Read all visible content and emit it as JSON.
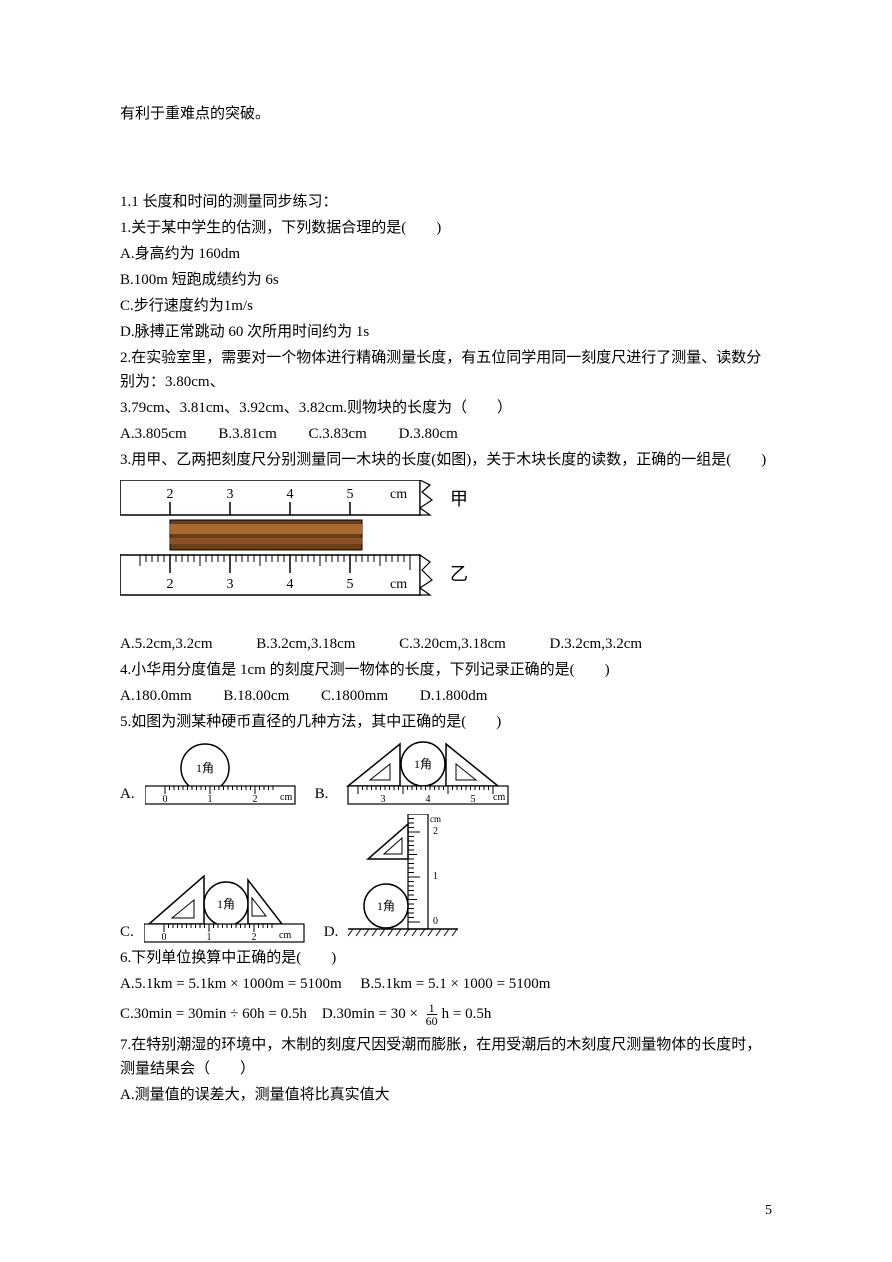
{
  "intro": "有利于重难点的突破。",
  "section": {
    "title": "1.1 长度和时间的测量同步练习：",
    "q1": {
      "stem": "1.关于某中学生的估测，下列数据合理的是(　　)",
      "A": "A.身高约为 160dm",
      "B": "B.100m 短跑成绩约为 6s",
      "C": "C.步行速度约为1m/s",
      "D": "D.脉搏正常跳动 60 次所用时间约为 1s"
    },
    "q2": {
      "stem1": "2.在实验室里，需要对一个物体进行精确测量长度，有五位同学用同一刻度尺进行了测量、读数分别为：3.80cm、",
      "stem2": "3.79cm、3.81cm、3.92cm、3.82cm.则物块的长度为（　　）",
      "A": "A.3.805cm",
      "B": "B.3.81cm",
      "C": "C.3.83cm",
      "D": "D.3.80cm"
    },
    "q3": {
      "stem": "3.用甲、乙两把刻度尺分别测量同一木块的长度(如图)，关于木块长度的读数，正确的一组是(　　)",
      "A": "A.5.2cm,3.2cm",
      "B": "B.3.2cm,3.18cm",
      "C": "C.3.20cm,3.18cm",
      "D": "D.3.2cm,3.2cm",
      "ruler1": {
        "ticks": [
          "2",
          "3",
          "4",
          "5"
        ],
        "unit": "cm",
        "label": "甲"
      },
      "ruler2": {
        "ticks": [
          "2",
          "3",
          "4",
          "5"
        ],
        "unit": "cm",
        "label": "乙"
      }
    },
    "q4": {
      "stem": "4.小华用分度值是 1cm 的刻度尺测一物体的长度，下列记录正确的是(　　)",
      "A": "A.180.0mm",
      "B": "B.18.00cm",
      "C": "C.1800mm",
      "D": "D.1.800dm"
    },
    "q5": {
      "stem": "5.如图为测某种硬币直径的几种方法，其中正确的是(　　)",
      "coin_label": "1角",
      "unit": "cm",
      "A_ticks": [
        "0",
        "1",
        "2"
      ],
      "B_ticks": [
        "3",
        "4",
        "5"
      ],
      "C_ticks": [
        "0",
        "1",
        "2"
      ],
      "D_ticks": [
        "0",
        "1",
        "2"
      ],
      "labels": {
        "A": "A.",
        "B": "B.",
        "C": "C.",
        "D": "D."
      }
    },
    "q6": {
      "stem": "6.下列单位换算中正确的是(　　)",
      "A": "A.5.1km = 5.1km × 1000m  = 5100m",
      "B": "B.5.1km = 5.1 × 1000 = 5100m",
      "C": "C.30min  = 30min ÷ 60h = 0.5h",
      "D_pre": "D.30min  = 30 × ",
      "D_post": "h = 0.5h",
      "D_frac_top": "1",
      "D_frac_bot": "60"
    },
    "q7": {
      "stem": "7.在特别潮湿的环境中，木制的刻度尺因受潮而膨胀，在用受潮后的木刻度尺测量物体的长度时，测量结果会（　　）",
      "A": "A.测量值的误差大，测量值将比真实值大"
    }
  },
  "page_number": "5",
  "colors": {
    "text": "#000000",
    "background": "#ffffff",
    "wood_dark": "#6b3e1a",
    "wood_light": "#a86a2e",
    "ruler_bg": "#ffffff"
  }
}
